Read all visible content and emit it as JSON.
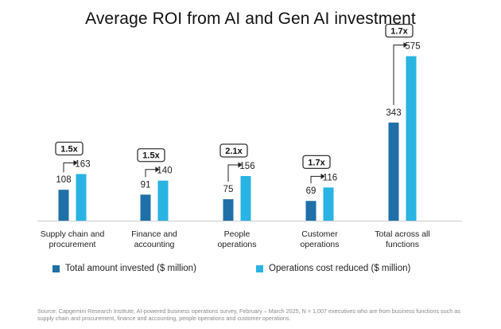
{
  "title": "Average ROI from AI and Gen AI investment",
  "colors": {
    "invested": "#1f70a8",
    "reduced": "#29b3e3",
    "axis": "#cccccc",
    "badge_border": "#333333"
  },
  "chart_data": {
    "type": "bar",
    "title": "Average ROI from AI and Gen AI investment",
    "categories": [
      "Supply chain and procurement",
      "Finance and accounting",
      "People operations",
      "Customer operations",
      "Total across all functions"
    ],
    "category_lines": [
      [
        "Supply chain and",
        "procurement"
      ],
      [
        "Finance and",
        "accounting"
      ],
      [
        "People",
        "operations"
      ],
      [
        "Customer",
        "operations"
      ],
      [
        "Total across all",
        "functions"
      ]
    ],
    "series": [
      {
        "name": "Total amount invested ($ million)",
        "values": [
          108,
          91,
          75,
          69,
          343
        ]
      },
      {
        "name": "Operations cost reduced ($ million)",
        "values": [
          163,
          140,
          156,
          116,
          575
        ]
      }
    ],
    "multipliers": [
      "1.5x",
      "1.5x",
      "2.1x",
      "1.7x",
      "1.7x"
    ],
    "ylim": [
      0,
      600
    ],
    "grid": false,
    "legend_position": "bottom"
  },
  "legend": {
    "invested_label": "Total amount invested ($ million)",
    "reduced_label": "Operations cost reduced ($ million)"
  },
  "source_text": "Source: Capgemini Research Institute, AI-powered business operations survey, February – March 2025, N = 1,007 executives who are from business functions such as supply chain and procurement, finance and accounting, people operations and customer operations."
}
